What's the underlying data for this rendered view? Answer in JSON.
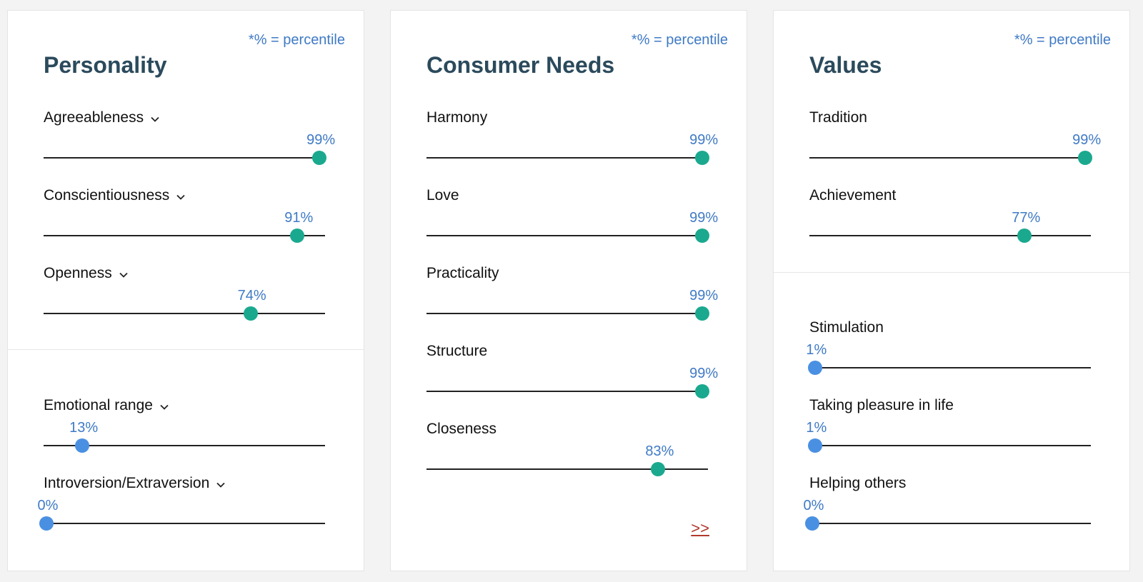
{
  "percentile_note": "*% = percentile",
  "personality": {
    "title": "Personality",
    "traits": [
      {
        "label": "Agreeableness",
        "percent_text": "99%",
        "value": 0.99,
        "level": "high",
        "expandable": true
      },
      {
        "label": "Conscientiousness",
        "percent_text": "91%",
        "value": 0.91,
        "level": "high",
        "expandable": true
      },
      {
        "label": "Openness",
        "percent_text": "74%",
        "value": 0.74,
        "level": "high",
        "expandable": true
      },
      {
        "label": "Emotional range",
        "percent_text": "13%",
        "value": 0.13,
        "level": "low",
        "expandable": true
      },
      {
        "label": "Introversion/Extraversion",
        "percent_text": "0%",
        "value": 0.0,
        "level": "low",
        "expandable": true
      }
    ]
  },
  "consumer_needs": {
    "title": "Consumer Needs",
    "traits": [
      {
        "label": "Harmony",
        "percent_text": "99%",
        "value": 0.99,
        "level": "high"
      },
      {
        "label": "Love",
        "percent_text": "99%",
        "value": 0.99,
        "level": "high"
      },
      {
        "label": "Practicality",
        "percent_text": "99%",
        "value": 0.99,
        "level": "high"
      },
      {
        "label": "Structure",
        "percent_text": "99%",
        "value": 0.99,
        "level": "high"
      },
      {
        "label": "Closeness",
        "percent_text": "83%",
        "value": 0.83,
        "level": "high"
      }
    ],
    "more_link": ">>"
  },
  "values": {
    "title": "Values",
    "traits": [
      {
        "label": "Tradition",
        "percent_text": "99%",
        "value": 0.99,
        "level": "high"
      },
      {
        "label": "Achievement",
        "percent_text": "77%",
        "value": 0.77,
        "level": "high"
      },
      {
        "label": "Stimulation",
        "percent_text": "1%",
        "value": 0.01,
        "level": "low"
      },
      {
        "label": "Taking pleasure in life",
        "percent_text": "1%",
        "value": 0.01,
        "level": "low"
      },
      {
        "label": "Helping others",
        "percent_text": "0%",
        "value": 0.0,
        "level": "low"
      }
    ]
  },
  "colors": {
    "high_knob": "#1aa98f",
    "low_knob": "#4a90e2",
    "percent_text": "#3f7ac5",
    "title": "#2b4a5c",
    "link": "#b03a2e"
  }
}
